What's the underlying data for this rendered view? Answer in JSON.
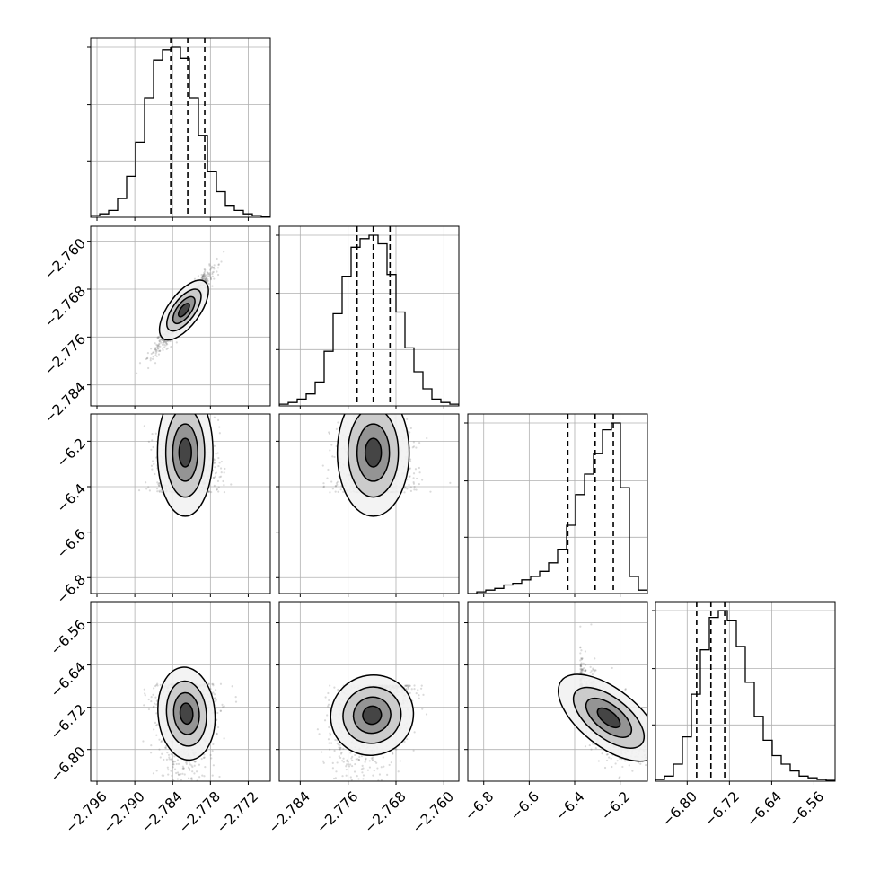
{
  "chart_data": {
    "type": "corner",
    "grid": true,
    "params": [
      {
        "range": [
          -2.797,
          -2.7685
        ],
        "ticks": [
          -2.796,
          -2.79,
          -2.784,
          -2.778,
          -2.772
        ],
        "tick_labels": [
          "−2.796",
          "−2.790",
          "−2.784",
          "−2.778",
          "−2.772"
        ],
        "quantiles": [
          -2.7843,
          -2.7816,
          -2.7789
        ],
        "hist": [
          0.01,
          0.02,
          0.04,
          0.11,
          0.24,
          0.44,
          0.7,
          0.92,
          0.98,
          1.0,
          0.93,
          0.7,
          0.48,
          0.27,
          0.15,
          0.07,
          0.04,
          0.02,
          0.01,
          0.005
        ]
      },
      {
        "range": [
          -2.7875,
          -2.7575
        ],
        "ticks": [
          -2.784,
          -2.776,
          -2.768,
          -2.76
        ],
        "tick_labels": [
          "−2.784",
          "−2.776",
          "−2.768",
          "−2.760"
        ],
        "quantiles": [
          -2.7745,
          -2.7718,
          -2.769
        ],
        "hist": [
          0.01,
          0.02,
          0.04,
          0.07,
          0.14,
          0.32,
          0.54,
          0.76,
          0.93,
          0.98,
          1.0,
          0.95,
          0.77,
          0.55,
          0.34,
          0.2,
          0.1,
          0.04,
          0.02,
          0.01
        ]
      },
      {
        "range": [
          -6.87,
          -6.08
        ],
        "ticks": [
          -6.8,
          -6.6,
          -6.4,
          -6.2
        ],
        "tick_labels": [
          "−6.8",
          "−6.6",
          "−6.4",
          "−6.2"
        ],
        "quantiles": [
          -6.43,
          -6.31,
          -6.23
        ],
        "hist": [
          0.0,
          0.01,
          0.02,
          0.03,
          0.05,
          0.06,
          0.08,
          0.1,
          0.13,
          0.18,
          0.26,
          0.4,
          0.58,
          0.7,
          0.82,
          0.96,
          1.0,
          0.62,
          0.1,
          0.02
        ]
      },
      {
        "range": [
          -6.86,
          -6.52
        ],
        "ticks": [
          -6.8,
          -6.72,
          -6.64,
          -6.56
        ],
        "tick_labels": [
          "−6.80",
          "−6.72",
          "−6.64",
          "−6.56"
        ],
        "quantiles": [
          -6.782,
          -6.755,
          -6.729
        ],
        "hist": [
          0.01,
          0.03,
          0.1,
          0.26,
          0.51,
          0.77,
          0.96,
          1.0,
          0.94,
          0.79,
          0.58,
          0.38,
          0.24,
          0.15,
          0.1,
          0.06,
          0.03,
          0.02,
          0.01,
          0.005
        ]
      }
    ],
    "pairs": [
      {
        "row": 1,
        "col": 0,
        "center": [
          -2.7822,
          -2.7715
        ],
        "std": [
          0.002,
          0.003
        ],
        "corr": 0.95,
        "skew": [
          0,
          0
        ]
      },
      {
        "row": 2,
        "col": 0,
        "center": [
          -2.782,
          -6.25
        ],
        "std": [
          0.0022,
          0.14
        ],
        "corr": 0.0,
        "skew": [
          0,
          -1
        ]
      },
      {
        "row": 2,
        "col": 1,
        "center": [
          -2.7718,
          -6.25
        ],
        "std": [
          0.003,
          0.14
        ],
        "corr": 0.0,
        "skew": [
          0,
          -1
        ]
      },
      {
        "row": 3,
        "col": 0,
        "center": [
          -2.7818,
          -6.732
        ],
        "std": [
          0.0022,
          0.045
        ],
        "corr": 0.05,
        "skew": [
          0,
          1
        ]
      },
      {
        "row": 3,
        "col": 1,
        "center": [
          -2.772,
          -6.735
        ],
        "std": [
          0.003,
          0.045
        ],
        "corr": 0.35,
        "skew": [
          0,
          1
        ]
      },
      {
        "row": 3,
        "col": 2,
        "center": [
          -6.25,
          -6.74
        ],
        "std": [
          0.1,
          0.045
        ],
        "corr": -0.75,
        "skew": [
          -1,
          0
        ]
      }
    ]
  }
}
